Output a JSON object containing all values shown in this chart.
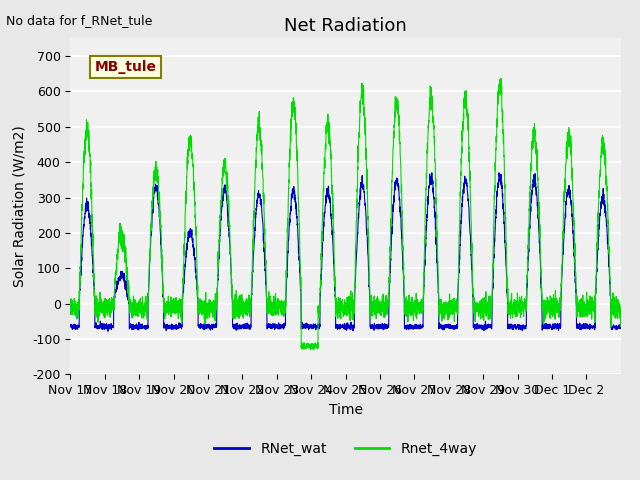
{
  "title": "Net Radiation",
  "xlabel": "Time",
  "ylabel": "Solar Radiation (W/m2)",
  "top_left_text": "No data for f_RNet_tule",
  "legend_label1": "RNet_wat",
  "legend_label2": "Rnet_4way",
  "legend_box_label": "MB_tule",
  "ylim": [
    -200,
    750
  ],
  "yticks": [
    -200,
    -100,
    0,
    100,
    200,
    300,
    400,
    500,
    600,
    700
  ],
  "background_color": "#e8e8e8",
  "plot_bg_color": "#f0f0f0",
  "line_color_blue": "#0000cc",
  "line_color_green": "#00dd00",
  "grid_color": "#ffffff",
  "n_days": 16,
  "n_points": 3840,
  "title_fontsize": 13,
  "axis_fontsize": 10,
  "tick_fontsize": 9,
  "day_peaks_wat": [
    280,
    80,
    330,
    200,
    325,
    310,
    320,
    320,
    340,
    350,
    355,
    350,
    360,
    350,
    325,
    300
  ],
  "day_peaks_4way": [
    490,
    200,
    385,
    460,
    390,
    500,
    570,
    505,
    605,
    570,
    580,
    580,
    620,
    480,
    475,
    450
  ],
  "tick_labels": [
    "Nov 17",
    "Nov 18",
    "Nov 19",
    "Nov 20",
    "Nov 21",
    "Nov 22",
    "Nov 23",
    "Nov 24",
    "Nov 25",
    "Nov 26",
    "Nov 27",
    "Nov 28",
    "Nov 29",
    "Nov 30",
    "Dec 1",
    "Dec 2"
  ]
}
